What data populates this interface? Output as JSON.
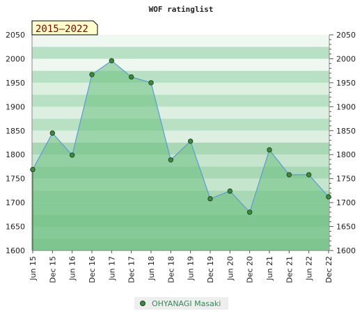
{
  "chart_data": {
    "type": "area",
    "title": "WOF ratinglist",
    "period_label": "2015–2022",
    "x": [
      "Jun 15",
      "Dec 15",
      "Jun 16",
      "Dec 16",
      "Jun 17",
      "Dec 17",
      "Jun 18",
      "Dec 18",
      "Jun 19",
      "Dec 19",
      "Jun 20",
      "Dec 20",
      "Jun 21",
      "Dec 21",
      "Jun 22",
      "Dec 22"
    ],
    "series": [
      {
        "name": "OHYANAGI Masaki",
        "values": [
          1769,
          1845,
          1799,
          1967,
          1996,
          1962,
          1950,
          1789,
          1828,
          1708,
          1724,
          1680,
          1810,
          1758,
          1758,
          1712
        ]
      }
    ],
    "ylim": [
      1600,
      2050
    ],
    "yticks": [
      1600,
      1650,
      1700,
      1750,
      1800,
      1850,
      1900,
      1950,
      2000,
      2050
    ],
    "grid": true,
    "legend_position": "bottom",
    "colors": {
      "line": "#5b9bd5",
      "area": "#6abf80",
      "marker": "#3a8a3a",
      "band_dark": "#b6dcc0",
      "band_light": "#e0f0e4",
      "legend_bg": "#eeeeee",
      "badge_bg": "#ffffcc"
    }
  }
}
